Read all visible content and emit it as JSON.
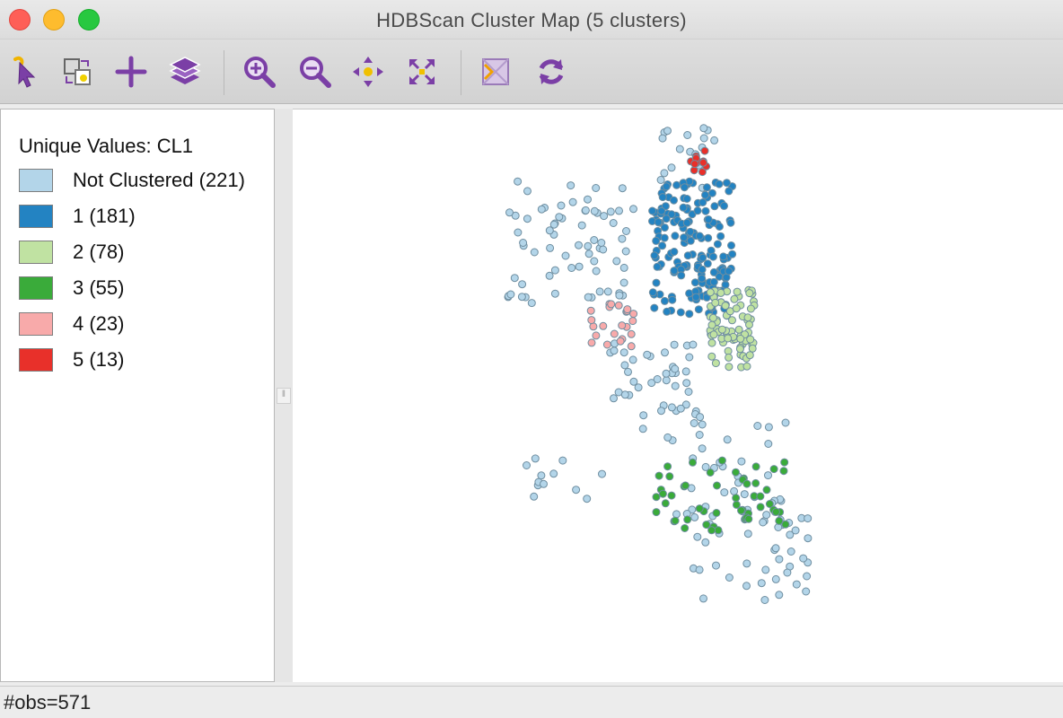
{
  "window": {
    "title": "HDBScan Cluster Map (5 clusters)"
  },
  "toolbar": {
    "tools": [
      {
        "icon": "select-pointer-icon"
      },
      {
        "icon": "selection-shape-icon"
      },
      {
        "icon": "add-plus-icon"
      },
      {
        "icon": "layers-icon"
      },
      {
        "icon": "zoom-in-icon"
      },
      {
        "icon": "zoom-out-icon"
      },
      {
        "icon": "pan-move-icon"
      },
      {
        "icon": "full-extent-icon"
      },
      {
        "icon": "basemap-toggle-icon"
      },
      {
        "icon": "refresh-icon"
      }
    ]
  },
  "legend": {
    "title": "Unique Values: CL1",
    "items": [
      {
        "label": "Not Clustered (221)",
        "color": "#b3d5e9"
      },
      {
        "label": "1 (181)",
        "color": "#2383c2"
      },
      {
        "label": "2 (78)",
        "color": "#c0e2a2"
      },
      {
        "label": "3 (55)",
        "color": "#3aab3a"
      },
      {
        "label": "4 (23)",
        "color": "#f8aaaa"
      },
      {
        "label": "5 (13)",
        "color": "#e8302a"
      }
    ]
  },
  "map": {
    "point_stroke": "#6f8ea0"
  },
  "status": {
    "text": "#obs=571"
  }
}
